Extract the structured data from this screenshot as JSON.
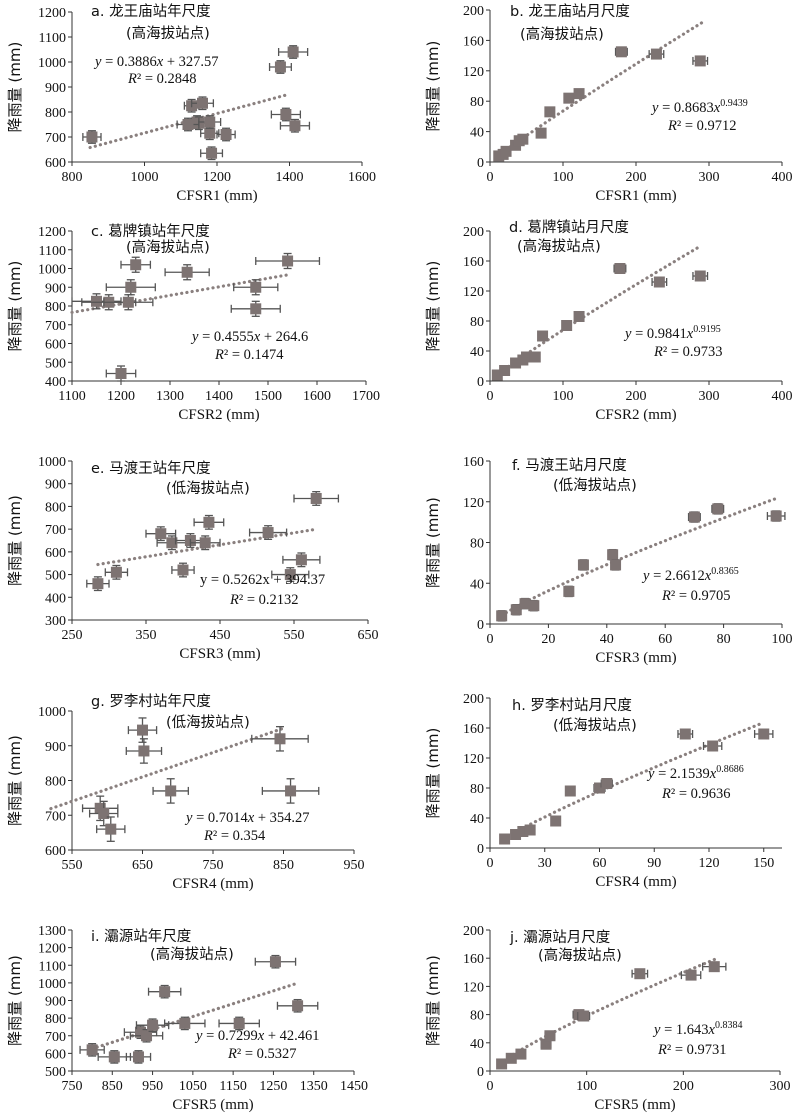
{
  "chart_data": [
    {
      "type": "scatter",
      "title": "a. 龙王庙站年尺度",
      "subtitle": "(高海拔站点)",
      "xlabel": "CFSR1 (mm)",
      "ylabel": "降雨量 (mm)",
      "xlim": [
        800,
        1600
      ],
      "ylim": [
        600,
        1200
      ],
      "xticks": [
        800,
        1000,
        1200,
        1400,
        1600
      ],
      "yticks": [
        600,
        700,
        800,
        900,
        1000,
        1100,
        1200
      ],
      "eq_lines": [
        [
          "y",
          " = 0.3886",
          "x",
          " + 327.57"
        ],
        [
          "R",
          "² = 0.2848"
        ]
      ],
      "trend": {
        "kind": "linear",
        "a": 0.3886,
        "b": 327.57,
        "x0": 850,
        "x1": 1390
      },
      "points": [
        [
          855,
          700
        ],
        [
          1130,
          825
        ],
        [
          1145,
          760
        ],
        [
          1160,
          835
        ],
        [
          1150,
          755
        ],
        [
          1180,
          715
        ],
        [
          1185,
          635
        ],
        [
          1225,
          710
        ],
        [
          1120,
          750
        ],
        [
          1180,
          760
        ],
        [
          1375,
          980
        ],
        [
          1410,
          1040
        ],
        [
          1390,
          790
        ],
        [
          1415,
          745
        ]
      ],
      "xerr": [
        [
          25
        ],
        [
          20
        ],
        [
          25
        ],
        [
          30
        ],
        [
          30
        ],
        [
          25
        ],
        [
          30
        ],
        [
          25
        ],
        [
          30
        ],
        [
          30
        ],
        [
          30
        ],
        [
          40
        ],
        [
          40
        ],
        [
          40
        ]
      ],
      "yerr": 25,
      "grid": false
    },
    {
      "type": "scatter",
      "title": "b. 龙王庙站月尺度",
      "subtitle": "(高海拔站点)",
      "xlabel": "CFSR1 (mm)",
      "ylabel": "降雨量 (mm)",
      "xlim": [
        0,
        400
      ],
      "ylim": [
        0,
        200
      ],
      "xticks": [
        0,
        100,
        200,
        300,
        400
      ],
      "yticks": [
        0,
        40,
        80,
        120,
        160,
        200
      ],
      "eq_lines": [
        [
          "y",
          " = 0.8683",
          "x",
          "0.9439"
        ],
        [
          "R",
          "² = 0.9712"
        ]
      ],
      "trend": {
        "kind": "power",
        "a": 0.8683,
        "b": 0.9439,
        "x0": 10,
        "x1": 290
      },
      "points": [
        [
          12,
          8
        ],
        [
          18,
          10
        ],
        [
          22,
          14
        ],
        [
          35,
          22
        ],
        [
          40,
          28
        ],
        [
          45,
          30
        ],
        [
          70,
          38
        ],
        [
          82,
          66
        ],
        [
          108,
          84
        ],
        [
          122,
          90
        ],
        [
          180,
          145
        ],
        [
          228,
          142
        ],
        [
          288,
          133
        ]
      ],
      "xerr": [
        [
          3
        ],
        [
          3
        ],
        [
          3
        ],
        [
          4
        ],
        [
          4
        ],
        [
          4
        ],
        [
          5
        ],
        [
          5
        ],
        [
          6
        ],
        [
          6
        ],
        [
          8
        ],
        [
          10
        ],
        [
          10
        ]
      ],
      "yerr": 5,
      "grid": false
    },
    {
      "type": "scatter",
      "title": "c. 葛牌镇站年尺度",
      "subtitle": "(高海拔站点)",
      "xlabel": "CFSR2 (mm)",
      "ylabel": "降雨量 (mm)",
      "xlim": [
        1100,
        1700
      ],
      "ylim": [
        400,
        1200
      ],
      "xticks": [
        1100,
        1200,
        1300,
        1400,
        1500,
        1600,
        1700
      ],
      "yticks": [
        400,
        500,
        600,
        700,
        800,
        900,
        1000,
        1100,
        1200
      ],
      "eq_lines": [
        [
          "y",
          " = 0.4555",
          "x",
          " + 264.6"
        ],
        [
          "R",
          "² = 0.1474"
        ]
      ],
      "trend": {
        "kind": "linear",
        "a": 0.4555,
        "b": 264.6,
        "x0": 1100,
        "x1": 1545
      },
      "points": [
        [
          1150,
          825
        ],
        [
          1175,
          820
        ],
        [
          1215,
          820
        ],
        [
          1220,
          900
        ],
        [
          1230,
          1020
        ],
        [
          1200,
          440
        ],
        [
          1335,
          980
        ],
        [
          1475,
          900
        ],
        [
          1475,
          785
        ],
        [
          1540,
          1040
        ]
      ],
      "xerr": [
        [
          50
        ],
        [
          55
        ],
        [
          50
        ],
        [
          50
        ],
        [
          30
        ],
        [
          30
        ],
        [
          45
        ],
        [
          45
        ],
        [
          50
        ],
        [
          65
        ]
      ],
      "yerr": 40,
      "grid": false
    },
    {
      "type": "scatter",
      "title": "d. 葛牌镇站月尺度",
      "subtitle": "(高海拔站点)",
      "xlabel": "CFSR2 (mm)",
      "ylabel": "降雨量 (mm)",
      "xlim": [
        0,
        400
      ],
      "ylim": [
        0,
        200
      ],
      "xticks": [
        0,
        100,
        200,
        300,
        400
      ],
      "yticks": [
        0,
        40,
        80,
        120,
        160,
        200
      ],
      "eq_lines": [
        [
          "y",
          " = 0.9841",
          "x",
          "0.9195"
        ],
        [
          "R",
          "² = 0.9733"
        ]
      ],
      "trend": {
        "kind": "power",
        "a": 0.9841,
        "b": 0.9195,
        "x0": 8,
        "x1": 287
      },
      "points": [
        [
          10,
          8
        ],
        [
          20,
          14
        ],
        [
          35,
          24
        ],
        [
          45,
          28
        ],
        [
          50,
          32
        ],
        [
          62,
          32
        ],
        [
          72,
          60
        ],
        [
          105,
          74
        ],
        [
          122,
          86
        ],
        [
          178,
          150
        ],
        [
          232,
          132
        ],
        [
          288,
          140
        ]
      ],
      "xerr": [
        [
          3
        ],
        [
          3
        ],
        [
          4
        ],
        [
          4
        ],
        [
          4
        ],
        [
          5
        ],
        [
          5
        ],
        [
          6
        ],
        [
          6
        ],
        [
          8
        ],
        [
          10
        ],
        [
          10
        ]
      ],
      "yerr": 5,
      "grid": false
    },
    {
      "type": "scatter",
      "title": "e. 马渡王站年尺度",
      "subtitle": "(低海拔站点)",
      "xlabel": "CFSR3 (mm)",
      "ylabel": "降雨量 (mm)",
      "xlim": [
        250,
        650
      ],
      "ylim": [
        300,
        1000
      ],
      "xticks": [
        250,
        350,
        450,
        550,
        650
      ],
      "yticks": [
        300,
        400,
        500,
        600,
        700,
        800,
        900,
        1000
      ],
      "eq_lines": [
        [
          "",
          "y = 0.5262x + 394.37",
          "",
          ""
        ],
        [
          "R",
          "² = 0.2132"
        ]
      ],
      "trend": {
        "kind": "linear",
        "a": 0.5262,
        "b": 394.37,
        "x0": 285,
        "x1": 580
      },
      "points": [
        [
          285,
          460
        ],
        [
          310,
          510
        ],
        [
          370,
          680
        ],
        [
          385,
          640
        ],
        [
          400,
          520
        ],
        [
          410,
          650
        ],
        [
          430,
          640
        ],
        [
          435,
          730
        ],
        [
          515,
          685
        ],
        [
          545,
          500
        ],
        [
          560,
          565
        ],
        [
          580,
          835
        ]
      ],
      "xerr": [
        [
          15
        ],
        [
          15
        ],
        [
          20
        ],
        [
          20
        ],
        [
          15
        ],
        [
          20
        ],
        [
          20
        ],
        [
          20
        ],
        [
          25
        ],
        [
          25
        ],
        [
          25
        ],
        [
          30
        ]
      ],
      "yerr": 30,
      "grid": false
    },
    {
      "type": "scatter",
      "title": "f. 马渡王站月尺度",
      "subtitle": "(低海拔站点)",
      "xlabel": "CFSR3 (mm)",
      "ylabel": "降雨量 (mm)",
      "xlim": [
        0,
        100
      ],
      "ylim": [
        0,
        160
      ],
      "xticks": [
        0,
        20,
        40,
        60,
        80,
        100
      ],
      "yticks": [
        0,
        40,
        80,
        120,
        160
      ],
      "eq_lines": [
        [
          "y",
          " = 2.6612",
          "x",
          "0.8365"
        ],
        [
          "R",
          "² = 0.9705"
        ]
      ],
      "trend": {
        "kind": "power",
        "a": 2.6612,
        "b": 0.8365,
        "x0": 4,
        "x1": 98
      },
      "points": [
        [
          4,
          8
        ],
        [
          9,
          14
        ],
        [
          12,
          20
        ],
        [
          15,
          18
        ],
        [
          27,
          32
        ],
        [
          32,
          58
        ],
        [
          42,
          68
        ],
        [
          43,
          58
        ],
        [
          70,
          105
        ],
        [
          78,
          113
        ],
        [
          98,
          106
        ]
      ],
      "xerr": [
        [
          1
        ],
        [
          1
        ],
        [
          1
        ],
        [
          1
        ],
        [
          1
        ],
        [
          1
        ],
        [
          1
        ],
        [
          1
        ],
        [
          2
        ],
        [
          2
        ],
        [
          3
        ]
      ],
      "yerr": 5,
      "grid": false
    },
    {
      "type": "scatter",
      "title": "g. 罗李村站年尺度",
      "subtitle": "(低海拔站点)",
      "xlabel": "CFSR4 (mm)",
      "ylabel": "降雨量 (mm)",
      "xlim": [
        550,
        950
      ],
      "ylim": [
        600,
        1000
      ],
      "xticks": [
        550,
        650,
        750,
        850,
        950
      ],
      "yticks": [
        600,
        700,
        800,
        900,
        1000
      ],
      "eq_lines": [
        [
          "y",
          " = 0.7014",
          "x",
          " + 354.27"
        ],
        [
          "R",
          "² = 0.354"
        ]
      ],
      "trend": {
        "kind": "linear",
        "a": 0.7014,
        "b": 354.27,
        "x0": 520,
        "x1": 850
      },
      "points": [
        [
          590,
          720
        ],
        [
          595,
          705
        ],
        [
          605,
          660
        ],
        [
          650,
          945
        ],
        [
          652,
          885
        ],
        [
          690,
          770
        ],
        [
          845,
          920
        ],
        [
          860,
          770
        ]
      ],
      "xerr": [
        [
          25
        ],
        [
          20
        ],
        [
          20
        ],
        [
          20
        ],
        [
          25
        ],
        [
          25
        ],
        [
          40
        ],
        [
          40
        ]
      ],
      "yerr": 35,
      "grid": false
    },
    {
      "type": "scatter",
      "title": "h. 罗李村站月尺度",
      "subtitle": "(低海拔站点)",
      "xlabel": "CFSR4 (mm)",
      "ylabel": "降雨量 (mm)",
      "xlim": [
        0,
        160
      ],
      "ylim": [
        0,
        200
      ],
      "xticks": [
        0,
        30,
        60,
        90,
        120,
        150
      ],
      "yticks": [
        0,
        40,
        80,
        120,
        160,
        200
      ],
      "eq_lines": [
        [
          "y",
          " = 2.1539",
          "x",
          "0.8686"
        ],
        [
          "R",
          "² = 0.9636"
        ]
      ],
      "trend": {
        "kind": "power",
        "a": 2.1539,
        "b": 0.8686,
        "x0": 7,
        "x1": 148
      },
      "points": [
        [
          8,
          12
        ],
        [
          14,
          18
        ],
        [
          18,
          22
        ],
        [
          22,
          24
        ],
        [
          36,
          36
        ],
        [
          44,
          76
        ],
        [
          60,
          80
        ],
        [
          64,
          86
        ],
        [
          107,
          152
        ],
        [
          122,
          136
        ],
        [
          150,
          152
        ]
      ],
      "xerr": [
        [
          1
        ],
        [
          1
        ],
        [
          2
        ],
        [
          2
        ],
        [
          2
        ],
        [
          2
        ],
        [
          3
        ],
        [
          3
        ],
        [
          4
        ],
        [
          5
        ],
        [
          5
        ]
      ],
      "yerr": 5,
      "grid": false
    },
    {
      "type": "scatter",
      "title": "i. 灞源站年尺度",
      "subtitle": "(高海拔站点)",
      "xlabel": "CFSR5 (mm)",
      "ylabel": "降雨量 (mm)",
      "xlim": [
        750,
        1450
      ],
      "ylim": [
        500,
        1300
      ],
      "xticks": [
        750,
        850,
        950,
        1050,
        1150,
        1250,
        1350,
        1450
      ],
      "yticks": [
        500,
        600,
        700,
        800,
        900,
        1000,
        1100,
        1200,
        1300
      ],
      "eq_lines": [
        [
          "y",
          " = 0.7299",
          "x",
          " + 42.461"
        ],
        [
          "R",
          "² = 0.5327"
        ]
      ],
      "trend": {
        "kind": "linear",
        "a": 0.7299,
        "b": 42.461,
        "x0": 800,
        "x1": 1310
      },
      "points": [
        [
          800,
          620
        ],
        [
          855,
          580
        ],
        [
          915,
          580
        ],
        [
          920,
          720
        ],
        [
          935,
          700
        ],
        [
          950,
          760
        ],
        [
          980,
          950
        ],
        [
          1030,
          770
        ],
        [
          1165,
          770
        ],
        [
          1255,
          1120
        ],
        [
          1310,
          870
        ]
      ],
      "xerr": [
        [
          30
        ],
        [
          40
        ],
        [
          30
        ],
        [
          40
        ],
        [
          40
        ],
        [
          40
        ],
        [
          40
        ],
        [
          50
        ],
        [
          50
        ],
        [
          50
        ],
        [
          50
        ]
      ],
      "yerr": 35,
      "grid": false
    },
    {
      "type": "scatter",
      "title": "j. 灞源站月尺度",
      "subtitle": "(高海拔站点)",
      "xlabel": "CFSR5 (mm)",
      "ylabel": "降雨量 (mm)",
      "xlim": [
        0,
        300
      ],
      "ylim": [
        0,
        200
      ],
      "xticks": [
        0,
        100,
        200,
        300
      ],
      "yticks": [
        0,
        40,
        80,
        120,
        160,
        200
      ],
      "eq_lines": [
        [
          "y",
          " = 1.643",
          "x",
          "0.8384"
        ],
        [
          "R",
          "² = 0.9731"
        ]
      ],
      "trend": {
        "kind": "power",
        "a": 1.643,
        "b": 0.8384,
        "x0": 10,
        "x1": 235
      },
      "points": [
        [
          12,
          10
        ],
        [
          22,
          18
        ],
        [
          32,
          24
        ],
        [
          58,
          38
        ],
        [
          62,
          50
        ],
        [
          92,
          80
        ],
        [
          97,
          78
        ],
        [
          155,
          138
        ],
        [
          208,
          136
        ],
        [
          232,
          148
        ]
      ],
      "xerr": [
        [
          3
        ],
        [
          3
        ],
        [
          4
        ],
        [
          5
        ],
        [
          5
        ],
        [
          6
        ],
        [
          6
        ],
        [
          8
        ],
        [
          10
        ],
        [
          12
        ]
      ],
      "yerr": 5,
      "grid": false
    }
  ],
  "colors": {
    "marker": "#7d7372",
    "trend": "#8a807f",
    "errorbar": "#555555",
    "axis": "#333333"
  }
}
